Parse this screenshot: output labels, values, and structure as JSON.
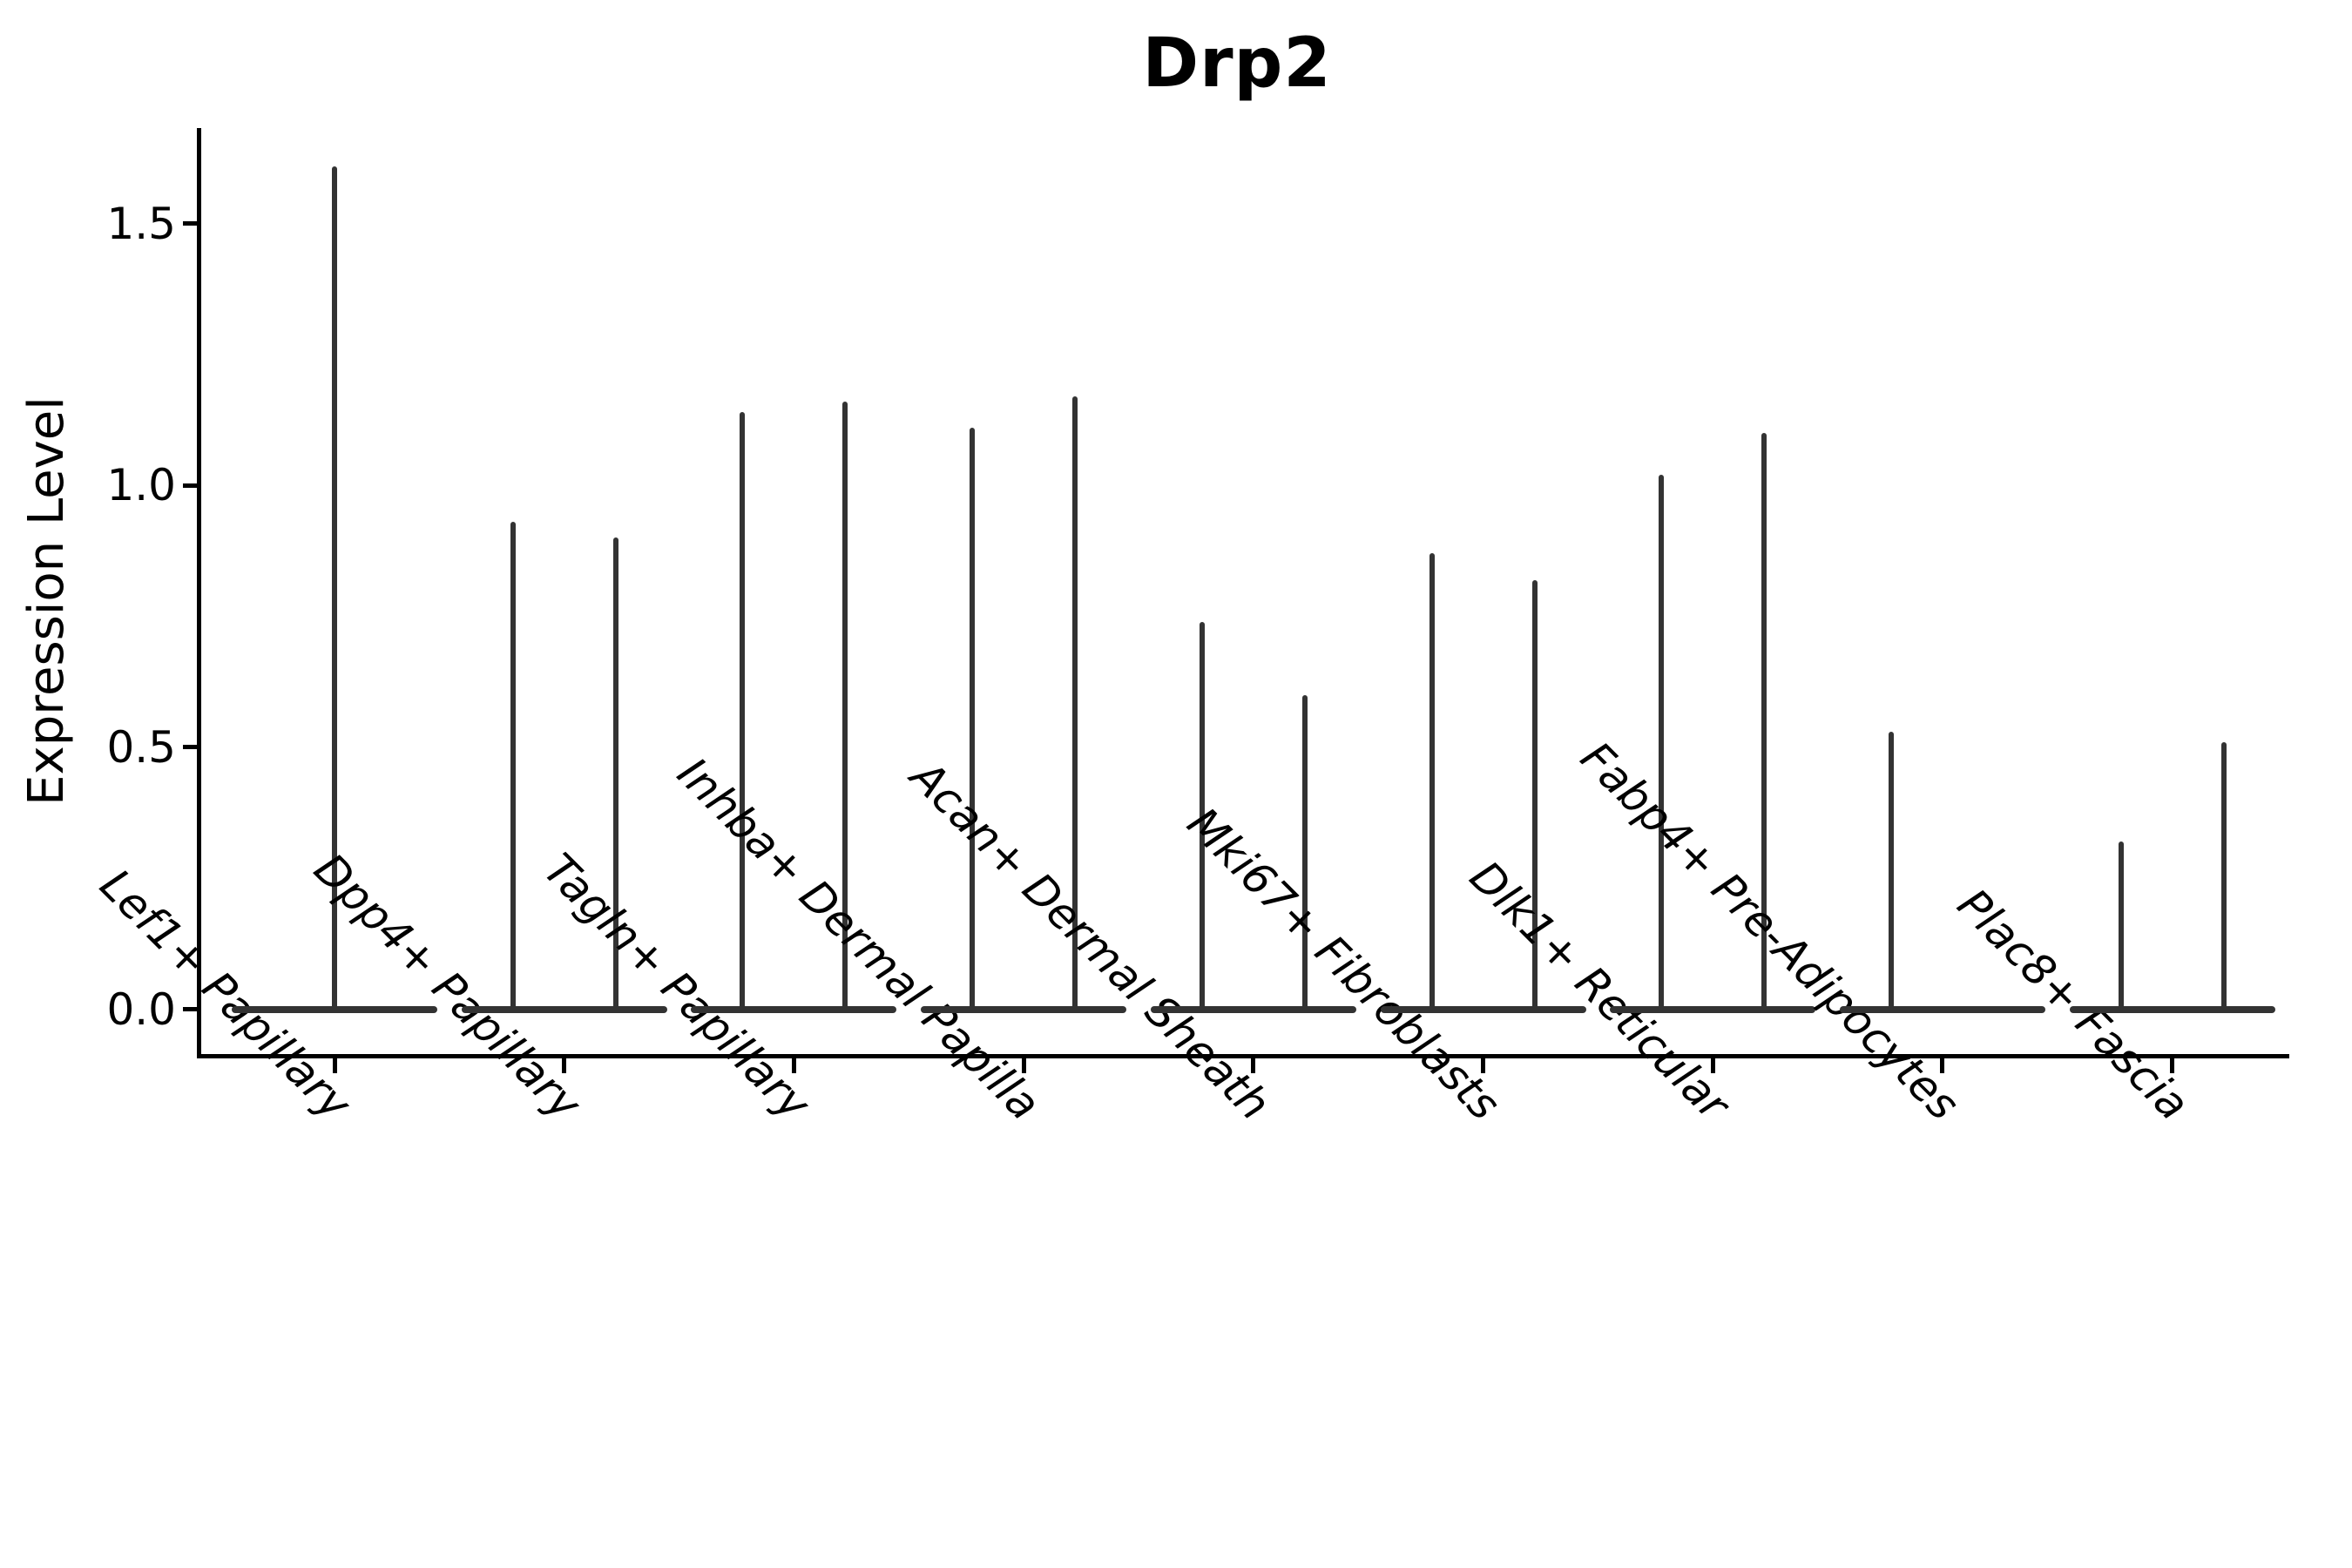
{
  "title": "Drp2",
  "y_axis": {
    "label": "Expression Level",
    "tick_labels": [
      "0.0",
      "0.5",
      "1.0",
      "1.5"
    ]
  },
  "colors": {
    "violin": "#333333",
    "axis": "#000000",
    "background": "#ffffff"
  },
  "chart_data": {
    "type": "violin",
    "title": "Drp2",
    "xlabel": "",
    "ylabel": "Expression Level",
    "ylim": [
      -0.09,
      1.68
    ],
    "yticks": [
      {
        "value": 0.0,
        "label": "0.0"
      },
      {
        "value": 0.5,
        "label": "0.5"
      },
      {
        "value": 1.0,
        "label": "1.0"
      },
      {
        "value": 1.5,
        "label": "1.5"
      }
    ],
    "grid": false,
    "legend": null,
    "spines": [
      "left",
      "bottom"
    ],
    "xtick_label_style": "italic, rotated 45deg, right-anchored",
    "description": "Violin plot of Drp2 expression per fibroblast cluster; each violin collapses to a flat base at 0 with a thin spike rising to the maximum expressed value (sparse expression). Most categories contain two side-by-side violins.",
    "categories": [
      "Lef1+ Papillary",
      "Dpp4+ Papillary",
      "Tagln+ Papillary",
      "Inhba+ Dermal Papilla",
      "Acan+ Dermal Sheath",
      "Mki67+ Fibroblasts",
      "Dlk1+ Reticular",
      "Fabp4+ Pre-Adipocytes",
      "Plac8+ Fascia"
    ],
    "series": [
      {
        "category": "Lef1+ Papillary",
        "violins": [
          {
            "position": "center",
            "base_mode": 0.0,
            "max": 1.61
          }
        ]
      },
      {
        "category": "Dpp4+ Papillary",
        "violins": [
          {
            "position": "left",
            "base_mode": 0.0,
            "max": 0.93
          },
          {
            "position": "right",
            "base_mode": 0.0,
            "max": 0.9
          }
        ]
      },
      {
        "category": "Tagln+ Papillary",
        "violins": [
          {
            "position": "left",
            "base_mode": 0.0,
            "max": 1.14
          },
          {
            "position": "right",
            "base_mode": 0.0,
            "max": 1.16
          }
        ]
      },
      {
        "category": "Inhba+ Dermal Papilla",
        "violins": [
          {
            "position": "left",
            "base_mode": 0.0,
            "max": 1.11
          },
          {
            "position": "right",
            "base_mode": 0.0,
            "max": 1.17
          }
        ]
      },
      {
        "category": "Acan+ Dermal Sheath",
        "violins": [
          {
            "position": "left",
            "base_mode": 0.0,
            "max": 0.74
          },
          {
            "position": "right",
            "base_mode": 0.0,
            "max": 0.6
          }
        ]
      },
      {
        "category": "Mki67+ Fibroblasts",
        "violins": [
          {
            "position": "left",
            "base_mode": 0.0,
            "max": 0.87
          },
          {
            "position": "right",
            "base_mode": 0.0,
            "max": 0.82
          }
        ]
      },
      {
        "category": "Dlk1+ Reticular",
        "violins": [
          {
            "position": "left",
            "base_mode": 0.0,
            "max": 1.02
          },
          {
            "position": "right",
            "base_mode": 0.0,
            "max": 1.1
          }
        ]
      },
      {
        "category": "Fabp4+ Pre-Adipocytes",
        "violins": [
          {
            "position": "left",
            "base_mode": 0.0,
            "max": 0.53
          }
        ]
      },
      {
        "category": "Plac8+ Fascia",
        "violins": [
          {
            "position": "left",
            "base_mode": 0.0,
            "max": 0.32
          },
          {
            "position": "right",
            "base_mode": 0.0,
            "max": 0.51
          }
        ]
      }
    ]
  }
}
